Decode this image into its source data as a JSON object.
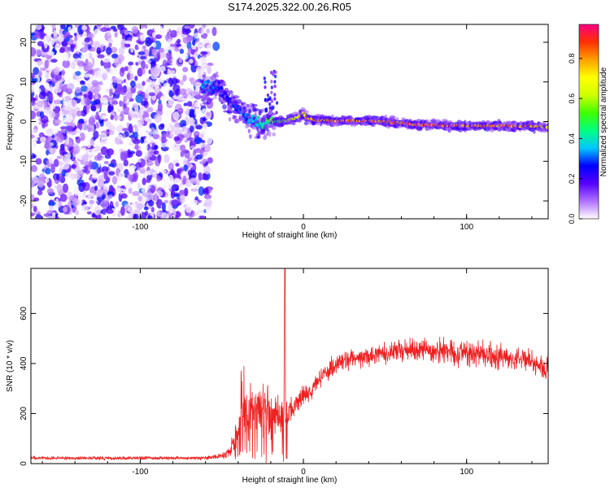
{
  "chart_data": [
    {
      "type": "heatmap",
      "title": "S174.2025.322.00.26.R05",
      "xlabel": "Height of straight line (km)",
      "ylabel": "Frequency (Hz)",
      "xlim": [
        -167,
        150
      ],
      "ylim": [
        -24.5,
        24.5
      ],
      "xticks": [
        -100,
        0,
        100
      ],
      "xtick_labels": [
        "-100",
        "0",
        "100"
      ],
      "yticks": [
        -20,
        -10,
        0,
        10,
        20
      ],
      "ytick_labels": [
        "-20",
        "-10",
        "0",
        "10",
        "20"
      ],
      "noise_region_x": [
        -167,
        -57
      ],
      "ridge": {
        "x": [
          -60,
          -52,
          -45,
          -40,
          -35,
          -30,
          -25,
          -20,
          -15,
          -10,
          -5,
          -2,
          0,
          2,
          10,
          20,
          30,
          40,
          50,
          60,
          70,
          80,
          90,
          100,
          110,
          120,
          130,
          140,
          150
        ],
        "frequency": [
          9,
          8.5,
          5,
          3,
          1,
          0,
          -1,
          0,
          0,
          0.3,
          0.8,
          1.5,
          2.2,
          0.8,
          0.3,
          0.2,
          0.2,
          0.1,
          0,
          -0.4,
          -0.7,
          -0.9,
          -1,
          -1.1,
          -1.1,
          -1.1,
          -1.1,
          -1.2,
          -1.5
        ],
        "amplitude": [
          0.35,
          0.3,
          0.28,
          0.3,
          0.35,
          0.4,
          0.45,
          0.55,
          0.6,
          0.65,
          0.7,
          0.75,
          0.8,
          0.85,
          0.9,
          0.92,
          0.92,
          0.9,
          0.88,
          0.9,
          0.92,
          0.93,
          0.93,
          0.93,
          0.93,
          0.92,
          0.9,
          0.85,
          0.7
        ]
      },
      "colorbar": {
        "label": "Normalized spectral amplitude",
        "range": [
          0,
          0.97
        ],
        "ticks": [
          0,
          0.2,
          0.4,
          0.6,
          0.8
        ],
        "tick_labels": [
          "0.0",
          "0.2",
          "0.4",
          "0.6",
          "0.8"
        ],
        "colors": [
          "#ffffff",
          "#b070ff",
          "#5500ff",
          "#0000ff",
          "#00c8ff",
          "#00ff80",
          "#40ff00",
          "#d0ff00",
          "#ffff00",
          "#ffa000",
          "#ff3000",
          "#ff0080"
        ]
      }
    },
    {
      "type": "line",
      "xlabel": "Height of straight line (km)",
      "ylabel": "SNR (10 * v/v)",
      "xlim": [
        -167,
        150
      ],
      "ylim": [
        0,
        780
      ],
      "xticks": [
        -100,
        0,
        100
      ],
      "xtick_labels": [
        "-100",
        "0",
        "100"
      ],
      "yticks": [
        0,
        200,
        400,
        600
      ],
      "ytick_labels": [
        "0",
        "200",
        "400",
        "600"
      ],
      "line_color": "#ee2020",
      "series": [
        {
          "name": "SNR",
          "x": [
            -167,
            -150,
            -100,
            -60,
            -50,
            -45,
            -40,
            -38,
            -35,
            -30,
            -25,
            -20,
            -15,
            -12,
            -11.5,
            -11,
            -10,
            -5,
            0,
            5,
            10,
            15,
            20,
            25,
            30,
            40,
            50,
            60,
            70,
            80,
            90,
            100,
            110,
            120,
            130,
            140,
            145,
            148,
            150
          ],
          "y": [
            22,
            22,
            22,
            22,
            30,
            50,
            120,
            250,
            230,
            220,
            230,
            200,
            180,
            170,
            780,
            170,
            190,
            240,
            270,
            300,
            340,
            370,
            390,
            410,
            420,
            430,
            440,
            450,
            450,
            450,
            450,
            440,
            440,
            430,
            420,
            410,
            400,
            360,
            420
          ],
          "noise_amplitude": [
            10,
            10,
            10,
            10,
            15,
            30,
            120,
            200,
            200,
            170,
            150,
            140,
            110,
            100,
            0,
            100,
            90,
            60,
            60,
            55,
            55,
            55,
            60,
            60,
            60,
            60,
            65,
            70,
            70,
            70,
            70,
            65,
            65,
            65,
            60,
            60,
            55,
            60,
            55
          ]
        }
      ]
    }
  ]
}
